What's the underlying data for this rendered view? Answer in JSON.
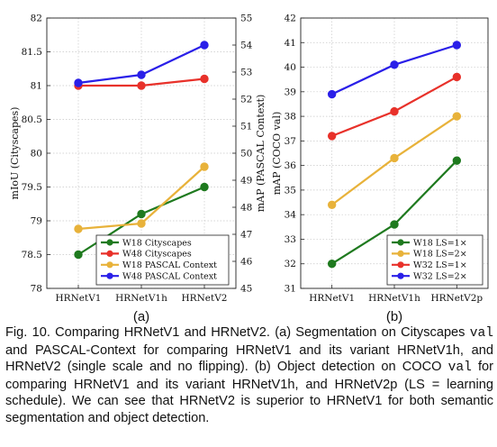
{
  "chart_data": [
    {
      "type": "line",
      "panel_label": "(a)",
      "categories": [
        "HRNetV1",
        "HRNetV1h",
        "HRNetV2"
      ],
      "ylabel": "mIoU (Cityscapes)",
      "ylim": [
        78,
        82
      ],
      "yticks": [
        "78",
        "78.5",
        "79",
        "79.5",
        "80",
        "80.5",
        "81",
        "81.5",
        "82"
      ],
      "y2label": "mAP (PASCAL Context)",
      "y2lim": [
        45,
        55
      ],
      "y2ticks": [
        "45",
        "46",
        "47",
        "48",
        "49",
        "50",
        "51",
        "52",
        "53",
        "54",
        "55"
      ],
      "grid": true,
      "legend_position": "bottom-right",
      "series": [
        {
          "name": "W18 Cityscapes",
          "axis": "left",
          "color": "#1f7a1f",
          "values": [
            78.5,
            79.1,
            79.5
          ]
        },
        {
          "name": "W48 Cityscapes",
          "axis": "left",
          "color": "#e8312a",
          "values": [
            81.0,
            81.0,
            81.1
          ]
        },
        {
          "name": "W18 PASCAL Context",
          "axis": "right",
          "color": "#e8b23a",
          "values": [
            47.2,
            47.4,
            49.5
          ]
        },
        {
          "name": "W48 PASCAL Context",
          "axis": "right",
          "color": "#2a1fe8",
          "values": [
            52.6,
            52.9,
            54.0
          ]
        }
      ]
    },
    {
      "type": "line",
      "panel_label": "(b)",
      "categories": [
        "HRNetV1",
        "HRNetV1h",
        "HRNetV2p"
      ],
      "ylabel": "mAP (COCO val)",
      "ylim": [
        31,
        42
      ],
      "yticks": [
        "31",
        "32",
        "33",
        "34",
        "35",
        "36",
        "37",
        "38",
        "39",
        "40",
        "41",
        "42"
      ],
      "grid": true,
      "legend_position": "bottom-right",
      "series": [
        {
          "name": "W18 LS=1×",
          "color": "#1f7a1f",
          "values": [
            32.0,
            33.6,
            36.2
          ]
        },
        {
          "name": "W18 LS=2×",
          "color": "#e8b23a",
          "values": [
            34.4,
            36.3,
            38.0
          ]
        },
        {
          "name": "W32 LS=1×",
          "color": "#e8312a",
          "values": [
            37.2,
            38.2,
            39.6
          ]
        },
        {
          "name": "W32 LS=2×",
          "color": "#2a1fe8",
          "values": [
            38.9,
            40.1,
            40.9
          ]
        }
      ]
    }
  ],
  "caption": {
    "fig_label": "Fig. 10.",
    "parts": [
      "Comparing HRNetV1 and HRNetV2. (a) Segmentation on Cityscapes ",
      " and PASCAL-Context for comparing HRNetV1 and its variant HRNetV1h, and HRNetV2 (single scale and no flipping). (b) Object detection on COCO ",
      " for comparing HRNetV1 and its variant HRNetV1h, and HRNetV2p (LS = learning schedule). We can see that HRNetV2 is superior to HRNetV1 for both semantic segmentation and object detection."
    ],
    "mono_1": "val",
    "mono_2": "val"
  }
}
